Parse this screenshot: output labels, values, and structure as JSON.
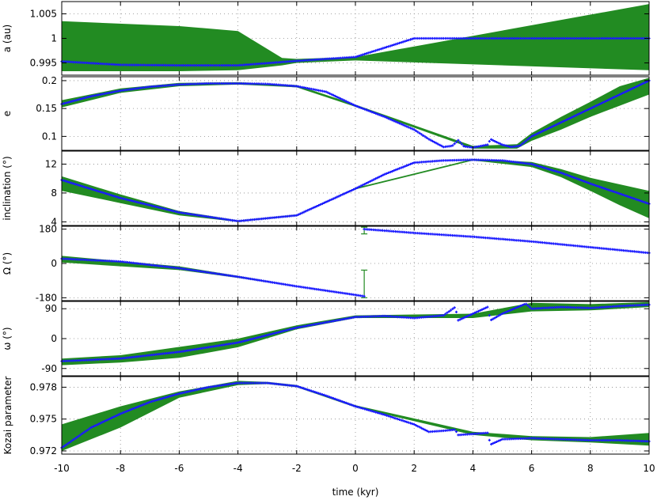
{
  "chart_data": {
    "type": "line",
    "xlabel": "time (kyr)",
    "xlim": [
      -10,
      10
    ],
    "xticks": [
      "-10",
      "-8",
      "-6",
      "-4",
      "-2",
      "0",
      "2",
      "4",
      "6",
      "8",
      "10"
    ],
    "grid": true,
    "colors": {
      "nominal": "#1a1aff",
      "band": "#228b22",
      "axis": "#000000",
      "grid": "#888888"
    },
    "panels": [
      {
        "ylabel": "a (au)",
        "ylim": [
          0.9925,
          1.0075
        ],
        "yticks": [
          0.995,
          1.0,
          1.005
        ],
        "ytick_labels": [
          "0.995",
          "1",
          "1.005"
        ],
        "nominal": {
          "x": [
            -10,
            -8,
            -6,
            -4,
            -2,
            0,
            2,
            4,
            6,
            8,
            10
          ],
          "y": [
            0.9953,
            0.9946,
            0.9945,
            0.9945,
            0.9954,
            0.9962,
            1.0,
            1.0,
            1.0,
            1.0,
            1.0
          ]
        },
        "band": {
          "x": [
            -10,
            -6,
            -4,
            -2.5,
            -2,
            0,
            10
          ],
          "lower": [
            0.9933,
            0.9933,
            0.9935,
            0.9945,
            0.995,
            0.9955,
            0.9935
          ],
          "upper": [
            1.0035,
            1.0025,
            1.0015,
            0.996,
            0.9958,
            0.9962,
            1.007
          ]
        }
      },
      {
        "ylabel": "e",
        "ylim": [
          0.075,
          0.207
        ],
        "yticks": [
          0.1,
          0.15,
          0.2
        ],
        "ytick_labels": [
          "0.1",
          "0.15",
          "0.2"
        ],
        "nominal": {
          "x": [
            -10,
            -9,
            -8,
            -7,
            -6,
            -5,
            -4,
            -3,
            -2,
            -1,
            0,
            1,
            2,
            2.5,
            3,
            3.3,
            3.5,
            3.7,
            4,
            4.5,
            4.6,
            5,
            5.3,
            5.6,
            6,
            7,
            8,
            9,
            10
          ],
          "y": [
            0.158,
            0.172,
            0.182,
            0.189,
            0.193,
            0.195,
            0.195,
            0.194,
            0.19,
            0.18,
            0.155,
            0.135,
            0.112,
            0.095,
            0.081,
            0.083,
            0.093,
            0.082,
            0.08,
            0.085,
            0.095,
            0.085,
            0.081,
            0.083,
            0.1,
            0.125,
            0.15,
            0.175,
            0.2
          ]
        },
        "band": {
          "x": [
            -10,
            -8,
            -6,
            -4,
            -2,
            0,
            4,
            5.5,
            6,
            7,
            8,
            9,
            10
          ],
          "lower": [
            0.152,
            0.178,
            0.19,
            0.193,
            0.188,
            0.153,
            0.078,
            0.078,
            0.092,
            0.112,
            0.135,
            0.155,
            0.175
          ],
          "upper": [
            0.165,
            0.186,
            0.196,
            0.197,
            0.192,
            0.157,
            0.083,
            0.086,
            0.106,
            0.135,
            0.162,
            0.19,
            0.205
          ]
        }
      },
      {
        "ylabel": "inclination (°)",
        "ylim": [
          3.5,
          13.8
        ],
        "yticks": [
          4,
          8,
          12
        ],
        "ytick_labels": [
          "4",
          "8",
          "12"
        ],
        "nominal": {
          "x": [
            -10,
            -8,
            -6,
            -4,
            -2,
            0,
            1,
            2,
            3,
            4,
            5,
            6,
            7,
            8,
            9,
            10
          ],
          "y": [
            9.8,
            7.3,
            5.3,
            4.1,
            4.9,
            8.6,
            10.6,
            12.2,
            12.5,
            12.6,
            12.5,
            12.0,
            10.8,
            9.3,
            7.9,
            6.5
          ]
        },
        "band": {
          "x": [
            -10,
            -8,
            -6,
            -4,
            -2,
            0,
            4,
            6,
            7,
            8,
            9,
            10
          ],
          "lower": [
            8.3,
            6.6,
            4.9,
            4.0,
            4.8,
            8.5,
            12.5,
            11.6,
            10.2,
            8.3,
            6.3,
            4.5
          ],
          "upper": [
            10.3,
            7.8,
            5.5,
            4.2,
            5.0,
            8.7,
            12.7,
            12.3,
            11.3,
            10.1,
            9.2,
            8.3
          ]
        }
      },
      {
        "ylabel": "Ω (°)",
        "ylim": [
          -195,
          195
        ],
        "yticks": [
          -180,
          0,
          180
        ],
        "ytick_labels": [
          "-180",
          "0",
          "180"
        ],
        "nominal": {
          "x": [
            -10,
            -8,
            -6,
            -4,
            -2,
            0,
            0.3
          ],
          "y": [
            25,
            10,
            -25,
            -70,
            -120,
            -165,
            -172
          ]
        },
        "nominal_2": {
          "x": [
            0.3,
            2,
            4,
            6,
            8,
            10
          ],
          "y": [
            180,
            160,
            140,
            115,
            85,
            55
          ]
        },
        "band": {
          "x": [
            -10,
            -6,
            -4,
            -2,
            0,
            0.3
          ],
          "lower": [
            5,
            -35,
            -75,
            -122,
            -166,
            -175
          ],
          "upper": [
            40,
            -15,
            -65,
            -118,
            -164,
            -170
          ]
        },
        "errorbars": [
          {
            "x": 0.3,
            "y": -172,
            "lower": -180,
            "upper": -35
          },
          {
            "x": 0.3,
            "y": 180,
            "lower": 155,
            "upper": 190
          }
        ]
      },
      {
        "ylabel": "ω (°)",
        "ylim": [
          -112,
          112
        ],
        "yticks": [
          -90,
          0,
          90
        ],
        "ytick_labels": [
          "-90",
          "0",
          "90"
        ],
        "nominal": {
          "x": [
            -10,
            -8,
            -6,
            -4,
            -2,
            0,
            1,
            2,
            3,
            3.4,
            3.5,
            4.5,
            4.6,
            5,
            5.8,
            6,
            7,
            8,
            9,
            10
          ],
          "y": [
            -68,
            -60,
            -40,
            -12,
            33,
            65,
            68,
            62,
            70,
            95,
            55,
            95,
            55,
            75,
            105,
            90,
            95,
            92,
            98,
            102
          ]
        },
        "band": {
          "x": [
            -10,
            -8,
            -6,
            -4,
            -2,
            0,
            4,
            6,
            8,
            10
          ],
          "lower": [
            -80,
            -72,
            -58,
            -26,
            28,
            62,
            62,
            82,
            85,
            95
          ],
          "upper": [
            -60,
            -50,
            -25,
            0,
            40,
            70,
            75,
            108,
            104,
            110
          ]
        }
      },
      {
        "ylabel": "Kozai parameter",
        "ylim": [
          0.9717,
          0.979
        ],
        "yticks": [
          0.972,
          0.975,
          0.978
        ],
        "ytick_labels": [
          "0.972",
          "0.975",
          "0.978"
        ],
        "nominal": {
          "x": [
            -10,
            -9,
            -8,
            -7,
            -6,
            -5,
            -4,
            -3,
            -2,
            -1,
            0,
            1,
            2,
            2.5,
            3,
            3.4,
            3.5,
            4,
            4.5,
            4.6,
            5,
            6,
            7,
            8,
            9,
            10
          ],
          "y": [
            0.9723,
            0.9742,
            0.9755,
            0.9766,
            0.9774,
            0.978,
            0.9784,
            0.9784,
            0.9781,
            0.9772,
            0.9762,
            0.9754,
            0.9745,
            0.9738,
            0.9739,
            0.974,
            0.9735,
            0.9736,
            0.9737,
            0.9726,
            0.9731,
            0.9732,
            0.9731,
            0.973,
            0.973,
            0.9729
          ]
        },
        "band": {
          "x": [
            -10,
            -8,
            -6,
            -4,
            -3,
            -2,
            0,
            4,
            6,
            8,
            10
          ],
          "lower": [
            0.972,
            0.9742,
            0.977,
            0.9782,
            0.9783,
            0.978,
            0.9761,
            0.9735,
            0.973,
            0.9728,
            0.9725
          ],
          "upper": [
            0.9745,
            0.9762,
            0.9776,
            0.9786,
            0.9785,
            0.9782,
            0.9763,
            0.9738,
            0.9734,
            0.9733,
            0.9737
          ]
        }
      }
    ]
  }
}
